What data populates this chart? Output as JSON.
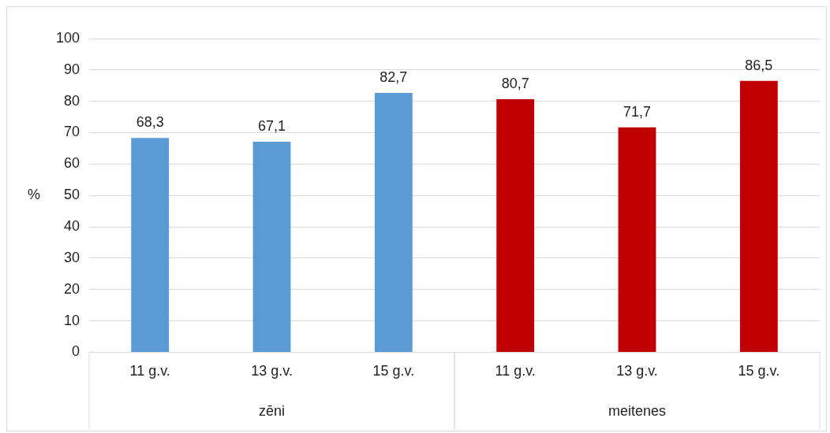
{
  "chart_data": {
    "type": "bar",
    "ylabel": "%",
    "categories": [
      "11 g.v.",
      "13 g.v.",
      "15 g.v.",
      "11 g.v.",
      "13 g.v.",
      "15 g.v."
    ],
    "series": [
      {
        "colors": [
          "#5b9bd5",
          "#5b9bd5",
          "#5b9bd5",
          "#c00000",
          "#c00000",
          "#c00000"
        ],
        "values": [
          68.3,
          67.1,
          82.7,
          80.7,
          71.7,
          86.5
        ],
        "value_labels": [
          "68,3",
          "67,1",
          "82,7",
          "80,7",
          "71,7",
          "86,5"
        ]
      }
    ],
    "ylim": [
      0,
      100
    ],
    "yticks": [
      0,
      10,
      20,
      30,
      40,
      50,
      60,
      70,
      80,
      90,
      100
    ],
    "grid": "y",
    "legend": false,
    "annotations": [
      "zēni",
      "meitenes"
    ]
  }
}
